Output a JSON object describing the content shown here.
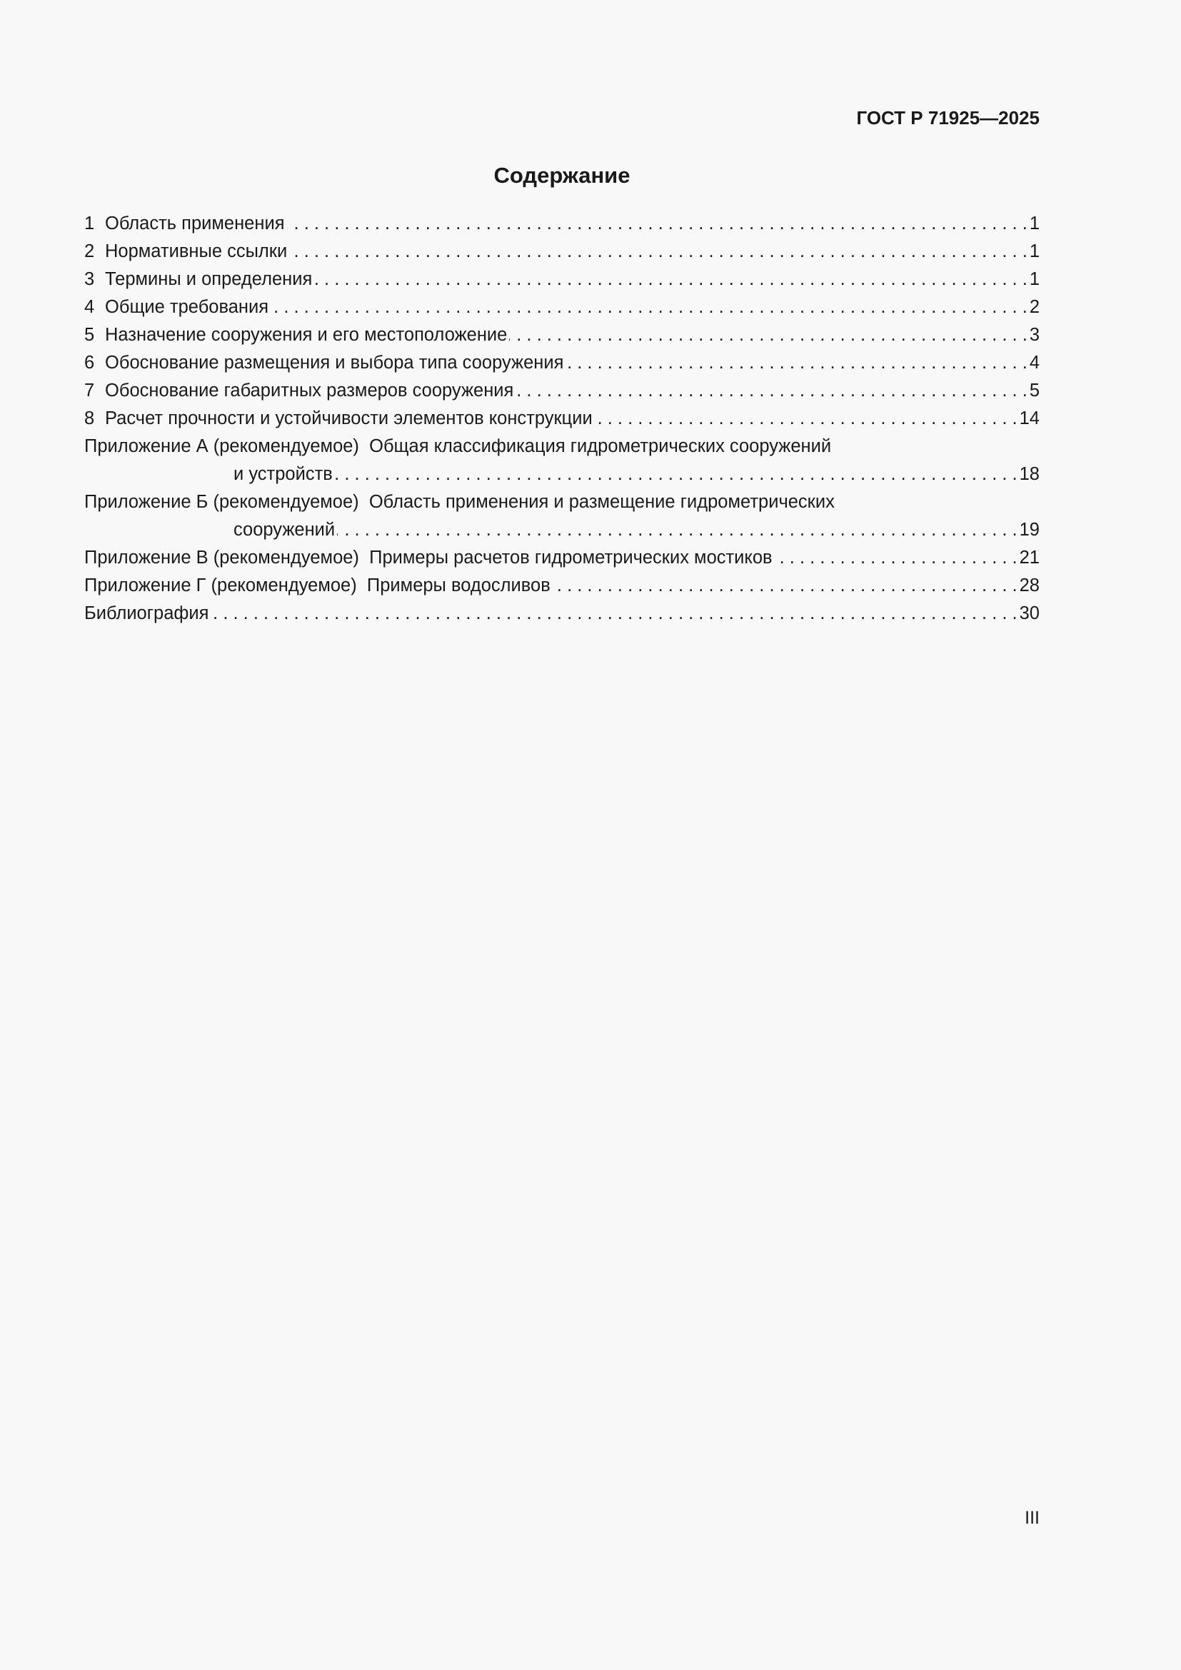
{
  "header": {
    "doc_id": "ГОСТ Р 71925—2025"
  },
  "title": "Содержание",
  "toc": {
    "sections": [
      {
        "num": "1",
        "title": "Область применения",
        "page": "1"
      },
      {
        "num": "2",
        "title": "Нормативные ссылки",
        "page": "1"
      },
      {
        "num": "3",
        "title": "Термины и определения",
        "page": "1"
      },
      {
        "num": "4",
        "title": "Общие требования",
        "page": "2"
      },
      {
        "num": "5",
        "title": "Назначение сооружения и его местоположение",
        "page": "3"
      },
      {
        "num": "6",
        "title": "Обоснование размещения и выбора типа сооружения",
        "page": "4"
      },
      {
        "num": "7",
        "title": "Обоснование габаритных размеров сооружения",
        "page": "5"
      },
      {
        "num": "8",
        "title": "Расчет прочности и устойчивости элементов конструкции",
        "page": "14"
      }
    ],
    "appendices": [
      {
        "label": "Приложение А (рекомендуемое)",
        "title_line1": "Общая классификация гидрометрических сооружений",
        "title_line2": "и устройств",
        "page": "18"
      },
      {
        "label": "Приложение Б (рекомендуемое)",
        "title_line1": "Область применения и размещение гидрометрических",
        "title_line2": "сооружений",
        "page": "19"
      },
      {
        "label": "Приложение В (рекомендуемое)",
        "title": "Примеры расчетов гидрометрических мостиков",
        "page": "21"
      },
      {
        "label": "Приложение Г (рекомендуемое)",
        "title": "Примеры водосливов",
        "page": "28"
      }
    ],
    "bibliography": {
      "title": "Библиография",
      "page": "30"
    }
  },
  "footer": {
    "page_number": "III"
  }
}
